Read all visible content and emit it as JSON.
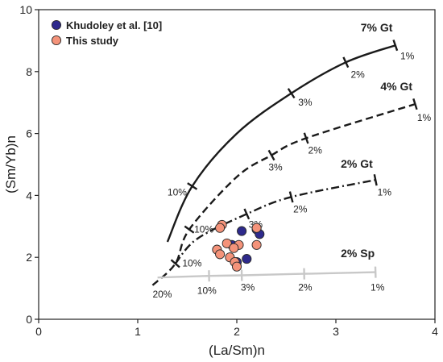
{
  "chart_data": {
    "type": "scatter",
    "xlabel": "(La/Sm)n",
    "ylabel": "(Sm/Yb)n",
    "xlim": [
      0,
      4
    ],
    "ylim": [
      0,
      10
    ],
    "x_ticks": [
      0,
      1,
      2,
      3,
      4
    ],
    "y_ticks": [
      0,
      2,
      4,
      6,
      8,
      10
    ],
    "x_tick_labels": [
      "0",
      "1",
      "2",
      "3",
      "4"
    ],
    "y_tick_labels": [
      "0",
      "2",
      "4",
      "6",
      "8",
      "10"
    ],
    "legend": {
      "position": "top-left",
      "entries": [
        {
          "label": "Khudoley et al. [10]",
          "color": "#2e2a8c"
        },
        {
          "label": "This study",
          "color": "#f4937a"
        }
      ]
    },
    "series": [
      {
        "name": "Khudoley et al. [10]",
        "color": "#2e2a8c",
        "points": [
          {
            "x": 2.05,
            "y": 2.85
          },
          {
            "x": 2.2,
            "y": 2.9
          },
          {
            "x": 2.23,
            "y": 2.75
          },
          {
            "x": 1.95,
            "y": 2.4
          },
          {
            "x": 2.0,
            "y": 1.85
          },
          {
            "x": 2.1,
            "y": 1.95
          }
        ]
      },
      {
        "name": "This study",
        "color": "#f4937a",
        "points": [
          {
            "x": 1.85,
            "y": 3.05
          },
          {
            "x": 1.83,
            "y": 2.95
          },
          {
            "x": 2.2,
            "y": 2.95
          },
          {
            "x": 1.9,
            "y": 2.45
          },
          {
            "x": 2.02,
            "y": 2.4
          },
          {
            "x": 2.2,
            "y": 2.4
          },
          {
            "x": 1.8,
            "y": 2.25
          },
          {
            "x": 1.83,
            "y": 2.1
          },
          {
            "x": 1.93,
            "y": 2.0
          },
          {
            "x": 1.98,
            "y": 1.85
          },
          {
            "x": 2.0,
            "y": 1.7
          },
          {
            "x": 1.97,
            "y": 2.3
          }
        ]
      }
    ],
    "melting_curves": [
      {
        "label": "7% Gt",
        "style": "solid",
        "color": "#1a1a1a",
        "label_at": {
          "x": 3.25,
          "y": 9.3
        },
        "points": [
          {
            "x": 1.3,
            "y": 2.5
          },
          {
            "x": 1.55,
            "y": 4.3
          },
          {
            "x": 2.0,
            "y": 6.0
          },
          {
            "x": 2.55,
            "y": 7.3
          },
          {
            "x": 3.1,
            "y": 8.3
          },
          {
            "x": 3.6,
            "y": 8.85
          }
        ],
        "ticks": [
          {
            "x": 1.55,
            "y": 4.3,
            "label": "10%",
            "label_at": {
              "x": 1.3,
              "y": 4.0
            }
          },
          {
            "x": 2.55,
            "y": 7.3,
            "label": "3%",
            "label_at": {
              "x": 2.62,
              "y": 6.9
            }
          },
          {
            "x": 3.1,
            "y": 8.3,
            "label": "2%",
            "label_at": {
              "x": 3.15,
              "y": 7.8
            }
          },
          {
            "x": 3.6,
            "y": 8.85,
            "label": "1%",
            "label_at": {
              "x": 3.65,
              "y": 8.4
            }
          }
        ]
      },
      {
        "label": "4% Gt",
        "style": "dashed",
        "color": "#1a1a1a",
        "label_at": {
          "x": 3.45,
          "y": 7.4
        },
        "points": [
          {
            "x": 1.15,
            "y": 1.1
          },
          {
            "x": 1.38,
            "y": 1.8
          },
          {
            "x": 1.52,
            "y": 2.9
          },
          {
            "x": 2.0,
            "y": 4.6
          },
          {
            "x": 2.35,
            "y": 5.3
          },
          {
            "x": 2.7,
            "y": 5.85
          },
          {
            "x": 3.8,
            "y": 6.95
          }
        ],
        "ticks": [
          {
            "x": 1.52,
            "y": 2.9,
            "label": "10%",
            "label_at": {
              "x": 1.57,
              "y": 2.8
            }
          },
          {
            "x": 2.35,
            "y": 5.3,
            "label": "3%",
            "label_at": {
              "x": 2.32,
              "y": 4.8
            }
          },
          {
            "x": 2.7,
            "y": 5.85,
            "label": "2%",
            "label_at": {
              "x": 2.72,
              "y": 5.35
            }
          },
          {
            "x": 3.8,
            "y": 6.95,
            "label": "1%",
            "label_at": {
              "x": 3.82,
              "y": 6.4
            }
          }
        ]
      },
      {
        "label": "2% Gt",
        "style": "dashdot",
        "color": "#1a1a1a",
        "label_at": {
          "x": 3.05,
          "y": 4.9
        },
        "points": [
          {
            "x": 1.38,
            "y": 1.8
          },
          {
            "x": 1.6,
            "y": 2.6
          },
          {
            "x": 2.1,
            "y": 3.4
          },
          {
            "x": 2.55,
            "y": 3.95
          },
          {
            "x": 3.4,
            "y": 4.5
          }
        ],
        "ticks": [
          {
            "x": 1.38,
            "y": 1.8,
            "label": "10%",
            "label_at": {
              "x": 1.45,
              "y": 1.7
            }
          },
          {
            "x": 2.1,
            "y": 3.4,
            "label": "3%",
            "label_at": {
              "x": 2.12,
              "y": 2.95
            }
          },
          {
            "x": 2.55,
            "y": 3.95,
            "label": "2%",
            "label_at": {
              "x": 2.57,
              "y": 3.45
            }
          },
          {
            "x": 3.4,
            "y": 4.5,
            "label": "1%",
            "label_at": {
              "x": 3.42,
              "y": 4.0
            }
          }
        ]
      },
      {
        "label": "2% Sp",
        "style": "solid",
        "color": "#c8c8c8",
        "label_at": {
          "x": 3.05,
          "y": 2.0
        },
        "points": [
          {
            "x": 1.2,
            "y": 1.35
          },
          {
            "x": 1.72,
            "y": 1.4
          },
          {
            "x": 2.05,
            "y": 1.42
          },
          {
            "x": 2.68,
            "y": 1.47
          },
          {
            "x": 3.4,
            "y": 1.52
          }
        ],
        "ticks": [
          {
            "x": 1.72,
            "y": 1.4,
            "label": "10%",
            "label_at": {
              "x": 1.6,
              "y": 0.82
            }
          },
          {
            "x": 2.05,
            "y": 1.42,
            "label": "3%",
            "label_at": {
              "x": 2.04,
              "y": 0.92
            }
          },
          {
            "x": 2.68,
            "y": 1.47,
            "label": "2%",
            "label_at": {
              "x": 2.62,
              "y": 0.92
            }
          },
          {
            "x": 3.4,
            "y": 1.52,
            "label": "1%",
            "label_at": {
              "x": 3.35,
              "y": 0.92
            }
          }
        ]
      }
    ],
    "annotations": [
      {
        "text": "20%",
        "at": {
          "x": 1.15,
          "y": 0.7
        }
      }
    ]
  }
}
